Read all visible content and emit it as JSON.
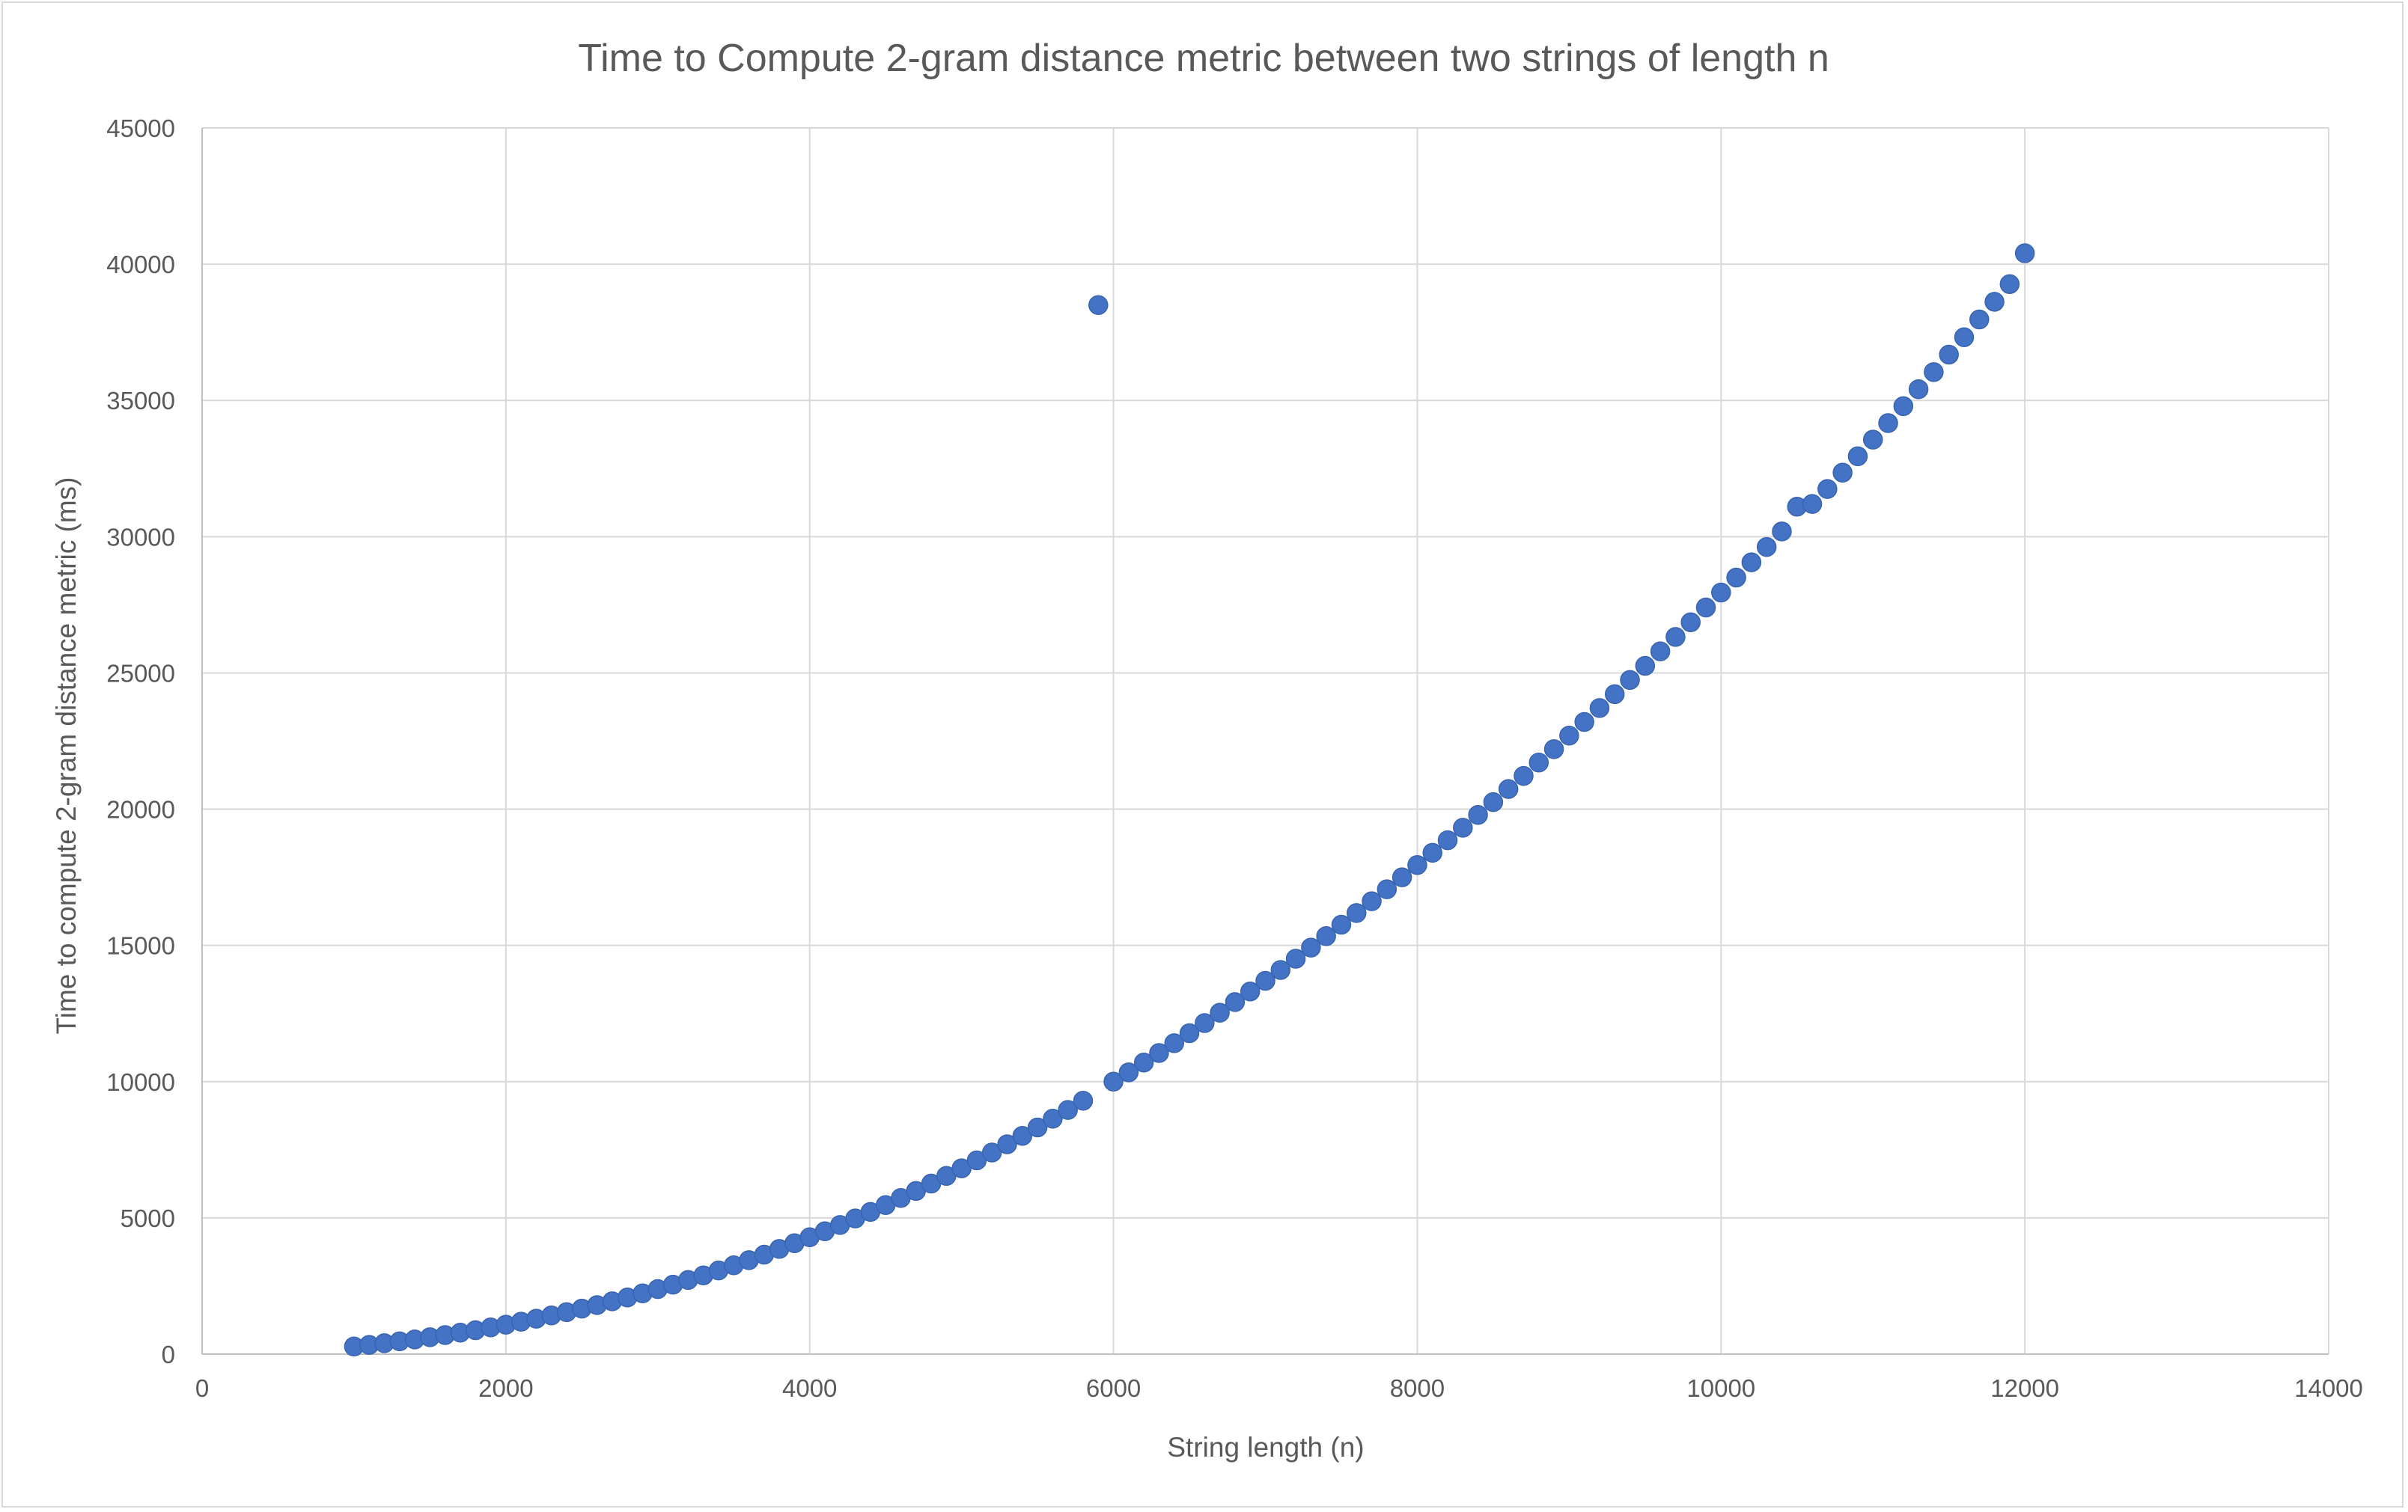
{
  "chart_data": {
    "type": "scatter",
    "title": "Time to Compute 2-gram distance metric between two strings of length n",
    "xlabel": "String length (n)",
    "ylabel": "Time to compute 2-gram distance metric (ms)",
    "xlim": [
      0,
      14000
    ],
    "ylim": [
      0,
      45000
    ],
    "x_ticks": [
      0,
      2000,
      4000,
      6000,
      8000,
      10000,
      12000,
      14000
    ],
    "y_ticks": [
      0,
      5000,
      10000,
      15000,
      20000,
      25000,
      30000,
      35000,
      40000,
      45000
    ],
    "grid": true,
    "legend": "none",
    "marker_color": "#4472c4",
    "series": [
      {
        "points": [
          [
            1000,
            280
          ],
          [
            1100,
            340
          ],
          [
            1200,
            400
          ],
          [
            1300,
            470
          ],
          [
            1400,
            540
          ],
          [
            1500,
            620
          ],
          [
            1600,
            700
          ],
          [
            1700,
            790
          ],
          [
            1800,
            880
          ],
          [
            1900,
            980
          ],
          [
            2000,
            1080
          ],
          [
            2100,
            1190
          ],
          [
            2200,
            1300
          ],
          [
            2300,
            1420
          ],
          [
            2400,
            1540
          ],
          [
            2500,
            1670
          ],
          [
            2600,
            1800
          ],
          [
            2700,
            1940
          ],
          [
            2800,
            2080
          ],
          [
            2900,
            2230
          ],
          [
            3000,
            2390
          ],
          [
            3100,
            2550
          ],
          [
            3200,
            2720
          ],
          [
            3300,
            2890
          ],
          [
            3400,
            3070
          ],
          [
            3500,
            3260
          ],
          [
            3600,
            3450
          ],
          [
            3700,
            3650
          ],
          [
            3800,
            3860
          ],
          [
            3900,
            4070
          ],
          [
            4000,
            4290
          ],
          [
            4100,
            4510
          ],
          [
            4200,
            4740
          ],
          [
            4300,
            4980
          ],
          [
            4400,
            5220
          ],
          [
            4500,
            5470
          ],
          [
            4600,
            5730
          ],
          [
            4700,
            5990
          ],
          [
            4800,
            6260
          ],
          [
            4900,
            6540
          ],
          [
            5000,
            6820
          ],
          [
            5100,
            7110
          ],
          [
            5200,
            7400
          ],
          [
            5300,
            7700
          ],
          [
            5400,
            8010
          ],
          [
            5500,
            8320
          ],
          [
            5600,
            8640
          ],
          [
            5700,
            8960
          ],
          [
            5800,
            9300
          ],
          [
            5900,
            38500
          ],
          [
            6000,
            10000
          ],
          [
            6100,
            10340
          ],
          [
            6200,
            10700
          ],
          [
            6300,
            11050
          ],
          [
            6400,
            11410
          ],
          [
            6500,
            11780
          ],
          [
            6600,
            12150
          ],
          [
            6700,
            12530
          ],
          [
            6800,
            12920
          ],
          [
            6900,
            13310
          ],
          [
            7000,
            13700
          ],
          [
            7100,
            14100
          ],
          [
            7200,
            14510
          ],
          [
            7300,
            14920
          ],
          [
            7400,
            15340
          ],
          [
            7500,
            15760
          ],
          [
            7600,
            16190
          ],
          [
            7700,
            16620
          ],
          [
            7800,
            17060
          ],
          [
            7900,
            17500
          ],
          [
            8000,
            17950
          ],
          [
            8100,
            18400
          ],
          [
            8200,
            18860
          ],
          [
            8300,
            19320
          ],
          [
            8400,
            19790
          ],
          [
            8500,
            20260
          ],
          [
            8600,
            20740
          ],
          [
            8700,
            21220
          ],
          [
            8800,
            21710
          ],
          [
            8900,
            22200
          ],
          [
            9000,
            22700
          ],
          [
            9100,
            23200
          ],
          [
            9200,
            23710
          ],
          [
            9300,
            24220
          ],
          [
            9400,
            24740
          ],
          [
            9500,
            25260
          ],
          [
            9600,
            25790
          ],
          [
            9700,
            26320
          ],
          [
            9800,
            26860
          ],
          [
            9900,
            27400
          ],
          [
            10000,
            27950
          ],
          [
            10100,
            28500
          ],
          [
            10200,
            29060
          ],
          [
            10300,
            29620
          ],
          [
            10400,
            30190
          ],
          [
            10500,
            31100
          ],
          [
            10600,
            31200
          ],
          [
            10700,
            31750
          ],
          [
            10800,
            32350
          ],
          [
            10900,
            32950
          ],
          [
            11000,
            33560
          ],
          [
            11100,
            34170
          ],
          [
            11200,
            34790
          ],
          [
            11300,
            35410
          ],
          [
            11400,
            36040
          ],
          [
            11500,
            36680
          ],
          [
            11600,
            37320
          ],
          [
            11700,
            37970
          ],
          [
            11800,
            38620
          ],
          [
            11900,
            39270
          ],
          [
            12000,
            40400
          ]
        ]
      }
    ]
  }
}
